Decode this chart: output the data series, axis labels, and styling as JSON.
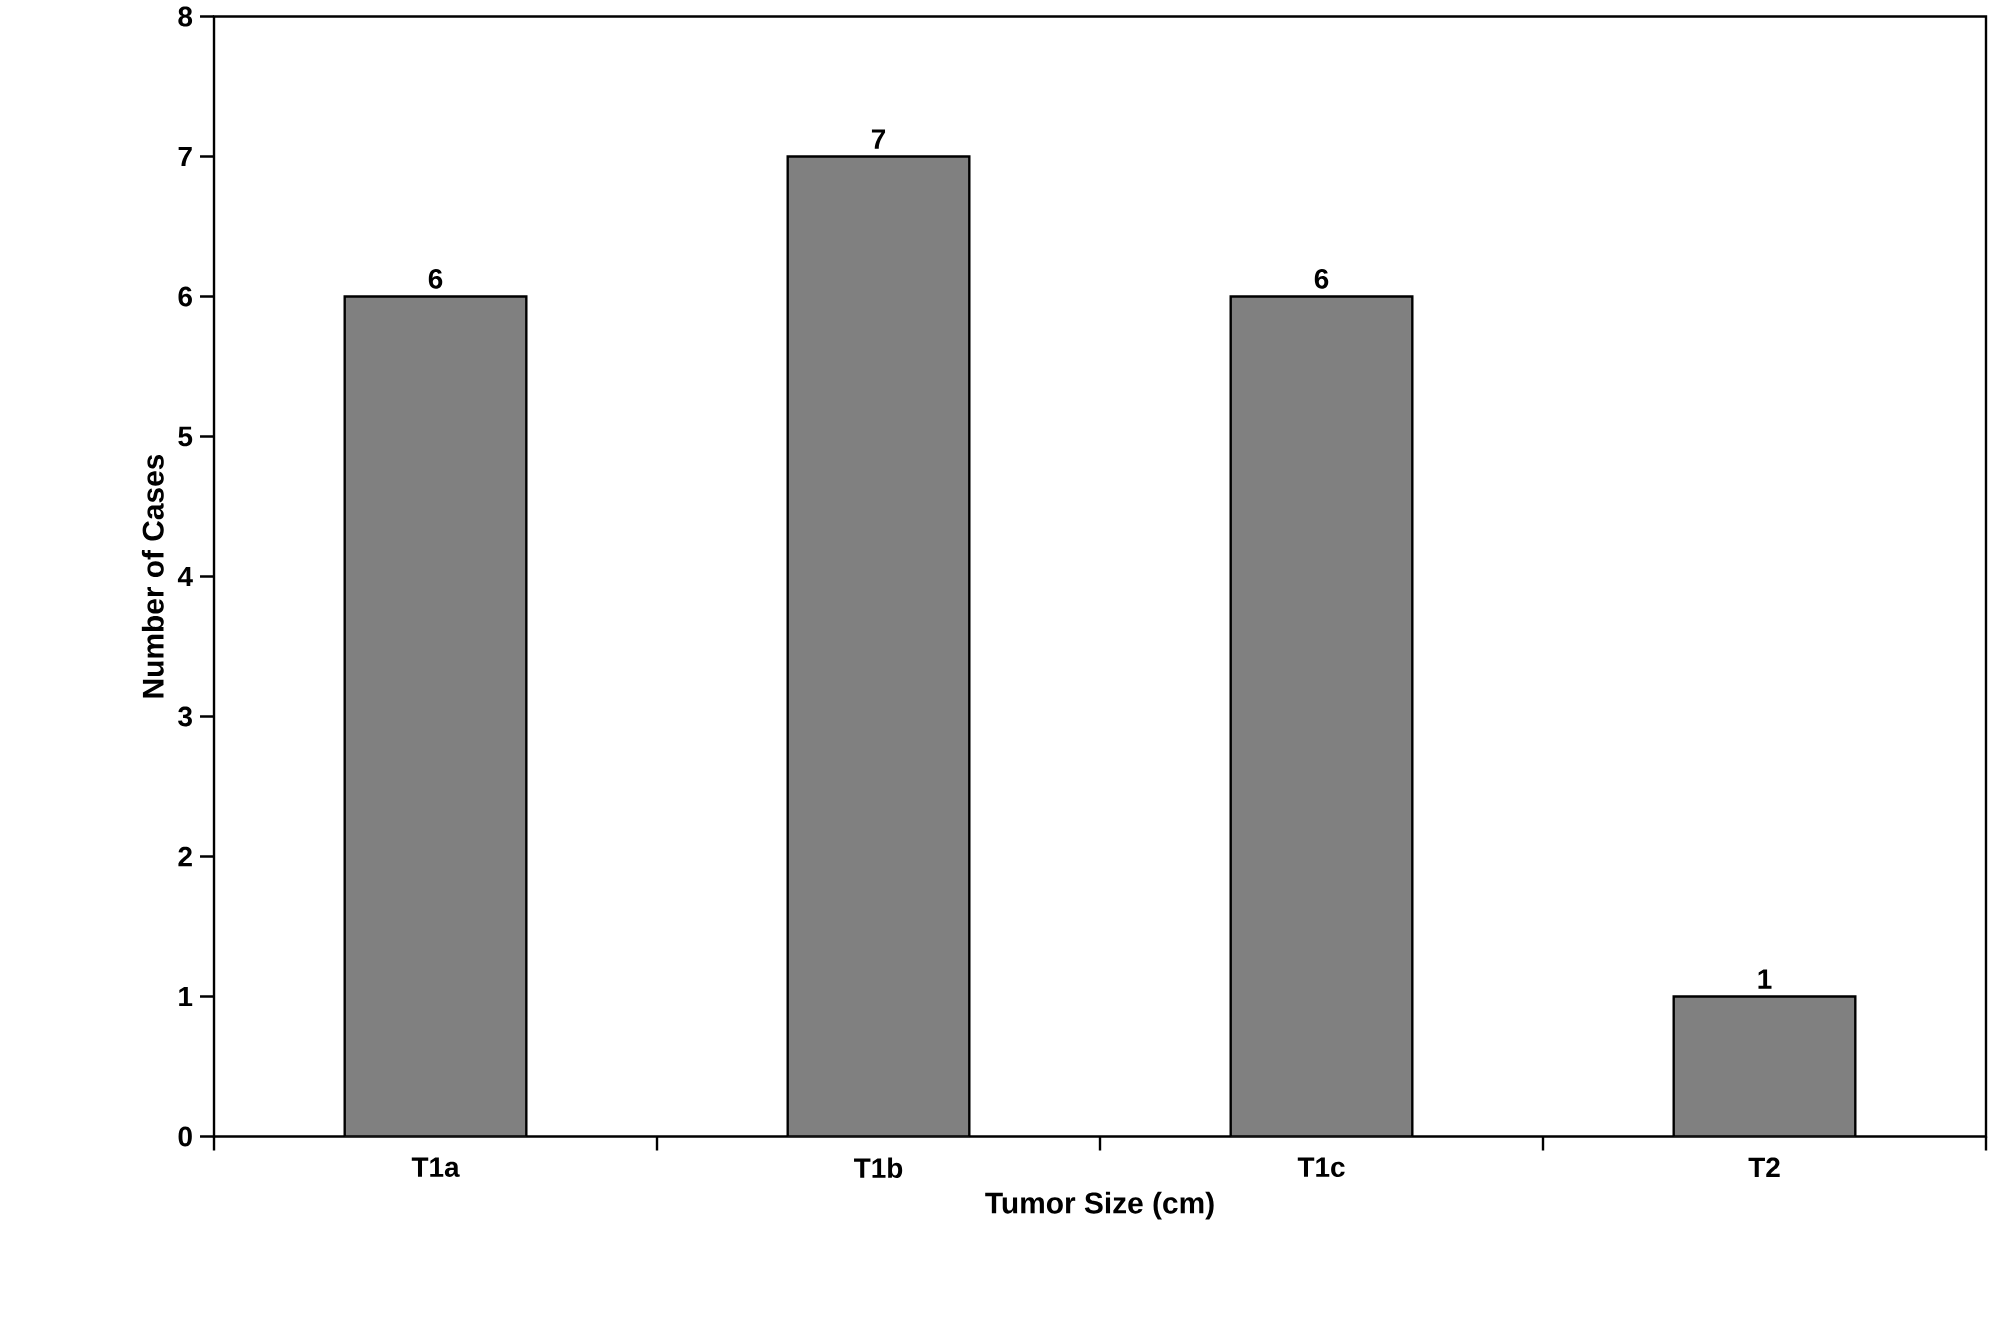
{
  "chart_data": {
    "type": "bar",
    "xlabel": "Tumor Size (cm)",
    "ylabel": "Number of Cases",
    "categories": [
      "T1a",
      "T1b",
      "T1c",
      "T2"
    ],
    "values": [
      6,
      7,
      6,
      1
    ],
    "color": "#808080",
    "ylim": [
      0,
      8
    ],
    "yticks": [
      0,
      1,
      2,
      3,
      4,
      5,
      6,
      7,
      8
    ],
    "data_labels": true
  }
}
